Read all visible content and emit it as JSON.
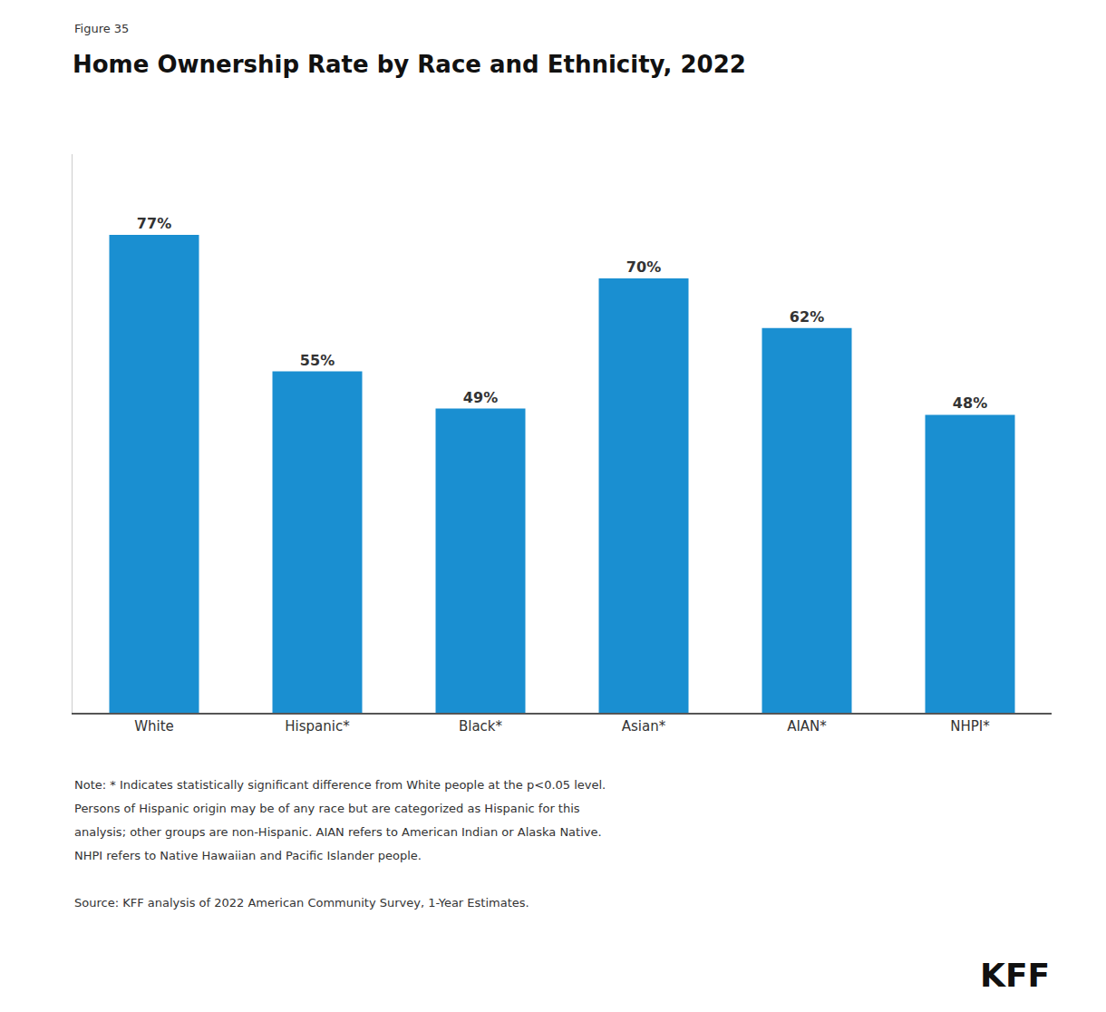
{
  "chart_data": {
    "type": "bar",
    "title": "Home Ownership Rate by Race and Ethnicity, 2022",
    "categories": [
      "White",
      "Hispanic*",
      "Black*",
      "Asian*",
      "AIAN*",
      "NHPI*"
    ],
    "values": [
      77,
      55,
      49,
      70,
      62,
      48
    ],
    "value_labels": [
      "77%",
      "55%",
      "49%",
      "70%",
      "62%",
      "48%"
    ],
    "data_labels": true,
    "color": "#1a8fd1",
    "ylim": [
      0,
      90
    ],
    "grid": false,
    "tick_labels": "x",
    "annotations": [
      "Figure 35",
      "Note: * Indicates statistically significant difference from White people at the p<0.05 level.",
      "Persons of Hispanic origin may be of any race but are categorized as Hispanic for this",
      "analysis; other groups are non-Hispanic. AIAN refers to American Indian or Alaska Native.",
      "NHPI refers to Native Hawaiian and Pacific Islander people.",
      "Source: KFF analysis of 2022 American Community Survey, 1-Year Estimates.",
      "KFF"
    ]
  }
}
